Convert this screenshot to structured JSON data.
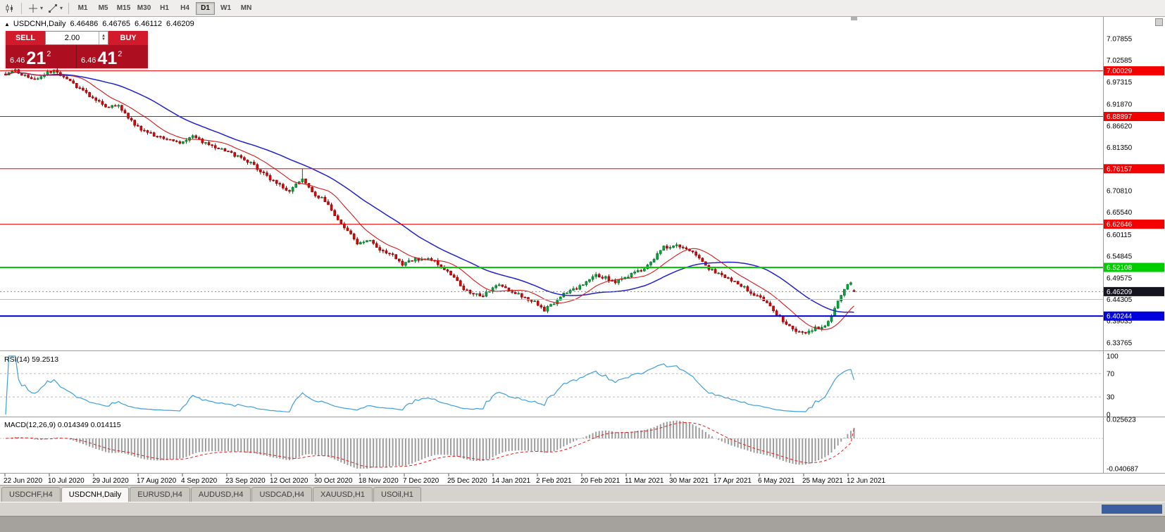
{
  "toolbar": {
    "icons": [
      "chart-type",
      "crosshair",
      "line-studies"
    ],
    "timeframes": [
      "M1",
      "M5",
      "M15",
      "M30",
      "H1",
      "H4",
      "D1",
      "W1",
      "MN"
    ],
    "active_timeframe": "D1"
  },
  "window": {
    "header": {
      "collapse_icon": "▲",
      "symbol": "USDCNH,Daily",
      "open": "6.46486",
      "high": "6.46765",
      "low": "6.46112",
      "close": "6.46209"
    },
    "trade_panel": {
      "sell_label": "SELL",
      "buy_label": "BUY",
      "volume": "2.00",
      "sell_price_small": "6.46",
      "sell_price_big": "21",
      "sell_price_sup": "2",
      "buy_price_small": "6.46",
      "buy_price_big": "41",
      "buy_price_sup": "2"
    }
  },
  "tabs": [
    {
      "label": "USDCHF,H4"
    },
    {
      "label": "USDCNH,Daily",
      "active": true
    },
    {
      "label": "EURUSD,H4"
    },
    {
      "label": "AUDUSD,H4"
    },
    {
      "label": "USDCAD,H4"
    },
    {
      "label": "XAUUSD,H1"
    },
    {
      "label": "USOil,H1"
    }
  ],
  "chart_data": {
    "type": "candlestick",
    "symbol": "USDCNH",
    "timeframe": "Daily",
    "ohlc": {
      "open": 6.46486,
      "high": 6.46765,
      "low": 6.46112,
      "close": 6.46209
    },
    "price_axis_labels": [
      "7.07855",
      "7.02585",
      "6.97315",
      "6.91870",
      "6.86620",
      "6.81350",
      "6.70810",
      "6.65540",
      "6.60115",
      "6.54845",
      "6.49575",
      "6.44305",
      "6.39035",
      "6.33765"
    ],
    "hlines": [
      {
        "price": 7.00029,
        "label": "7.00029",
        "color": "#f40000",
        "width": 1,
        "badge": true
      },
      {
        "price": 6.88897,
        "label": "6.88897",
        "color": "#f40000",
        "width": 1,
        "badge": true
      },
      {
        "price": 6.76157,
        "label": "6.76157",
        "color": "#f40000",
        "width": 1,
        "badge": true
      },
      {
        "price": 6.62646,
        "label": "6.62646",
        "color": "#f40000",
        "width": 1,
        "badge": true
      },
      {
        "price": 6.52108,
        "label": "6.52108",
        "color": "#00cc00",
        "width": 2,
        "badge": true
      },
      {
        "price": 6.44305,
        "label": "",
        "color": "#bcbcbc",
        "width": 1,
        "badge": false
      },
      {
        "price": 6.40244,
        "label": "6.40244",
        "color": "#0000dd",
        "width": 2,
        "badge": true
      }
    ],
    "current_price": {
      "value": 6.46209,
      "label": "6.46209",
      "badge_color": "#14141e"
    },
    "candle_count": 264,
    "trend_anchors": [
      [
        0,
        6.993
      ],
      [
        3,
        6.999
      ],
      [
        6,
        6.988
      ],
      [
        9,
        6.978
      ],
      [
        12,
        6.992
      ],
      [
        15,
        7.0
      ],
      [
        18,
        6.988
      ],
      [
        21,
        6.968
      ],
      [
        24,
        6.952
      ],
      [
        27,
        6.932
      ],
      [
        31,
        6.914
      ],
      [
        35,
        6.916
      ],
      [
        38,
        6.886
      ],
      [
        41,
        6.862
      ],
      [
        45,
        6.846
      ],
      [
        50,
        6.836
      ],
      [
        54,
        6.826
      ],
      [
        58,
        6.842
      ],
      [
        62,
        6.822
      ],
      [
        68,
        6.806
      ],
      [
        72,
        6.792
      ],
      [
        76,
        6.774
      ],
      [
        80,
        6.75
      ],
      [
        84,
        6.724
      ],
      [
        88,
        6.708
      ],
      [
        92,
        6.736
      ],
      [
        95,
        6.702
      ],
      [
        99,
        6.684
      ],
      [
        102,
        6.648
      ],
      [
        106,
        6.61
      ],
      [
        109,
        6.578
      ],
      [
        112,
        6.59
      ],
      [
        116,
        6.566
      ],
      [
        120,
        6.55
      ],
      [
        123,
        6.53
      ],
      [
        127,
        6.54
      ],
      [
        131,
        6.546
      ],
      [
        135,
        6.524
      ],
      [
        139,
        6.498
      ],
      [
        142,
        6.47
      ],
      [
        145,
        6.458
      ],
      [
        148,
        6.45
      ],
      [
        150,
        6.466
      ],
      [
        153,
        6.477
      ],
      [
        156,
        6.465
      ],
      [
        160,
        6.452
      ],
      [
        164,
        6.436
      ],
      [
        167,
        6.418
      ],
      [
        170,
        6.432
      ],
      [
        173,
        6.455
      ],
      [
        177,
        6.47
      ],
      [
        180,
        6.488
      ],
      [
        183,
        6.502
      ],
      [
        186,
        6.496
      ],
      [
        189,
        6.484
      ],
      [
        191,
        6.492
      ],
      [
        194,
        6.506
      ],
      [
        197,
        6.514
      ],
      [
        200,
        6.534
      ],
      [
        204,
        6.57
      ],
      [
        208,
        6.576
      ],
      [
        212,
        6.564
      ],
      [
        215,
        6.545
      ],
      [
        218,
        6.519
      ],
      [
        221,
        6.505
      ],
      [
        224,
        6.495
      ],
      [
        227,
        6.484
      ],
      [
        230,
        6.466
      ],
      [
        233,
        6.45
      ],
      [
        236,
        6.438
      ],
      [
        239,
        6.408
      ],
      [
        242,
        6.382
      ],
      [
        245,
        6.366
      ],
      [
        248,
        6.36
      ],
      [
        251,
        6.372
      ],
      [
        254,
        6.38
      ],
      [
        256,
        6.4
      ],
      [
        258,
        6.442
      ],
      [
        260,
        6.47
      ],
      [
        262,
        6.482
      ],
      [
        263,
        6.46209
      ]
    ],
    "spike": {
      "index": 92,
      "high": 6.7615
    },
    "colors": {
      "up": "#00a93c",
      "up_border": "#00651f",
      "down": "#e00406",
      "down_border": "#7c0000",
      "ma_fast": "#d81919",
      "ma_slow": "#2121cc"
    },
    "date_labels": [
      "22 Jun 2020",
      "10 Jul 2020",
      "29 Jul 2020",
      "17 Aug 2020",
      "4 Sep 2020",
      "23 Sep 2020",
      "12 Oct 2020",
      "30 Oct 2020",
      "18 Nov 2020",
      "7 Dec 2020",
      "25 Dec 2020",
      "14 Jan 2021",
      "2 Feb 2021",
      "20 Feb 2021",
      "11 Mar 2021",
      "30 Mar 2021",
      "17 Apr 2021",
      "6 May 2021",
      "25 May 2021",
      "12 Jun 2021"
    ],
    "indicators": {
      "rsi": {
        "label": "RSI(14) 59.2513",
        "period": 14,
        "current": 59.2513,
        "levels": [
          "100",
          "70",
          "30",
          "0"
        ],
        "color": "#3d9fdc"
      },
      "macd": {
        "label": "MACD(12,26,9) 0.014349 0.014115",
        "fast": 12,
        "slow": 26,
        "signal_period": 9,
        "value": 0.014349,
        "signal_value": 0.014115,
        "scale_labels": [
          "0.025623",
          "-0.040687"
        ],
        "scale_max": 0.025623,
        "scale_min": -0.040687,
        "histogram_color": "#9c9c9c",
        "signal_color": "#e02020"
      }
    }
  }
}
